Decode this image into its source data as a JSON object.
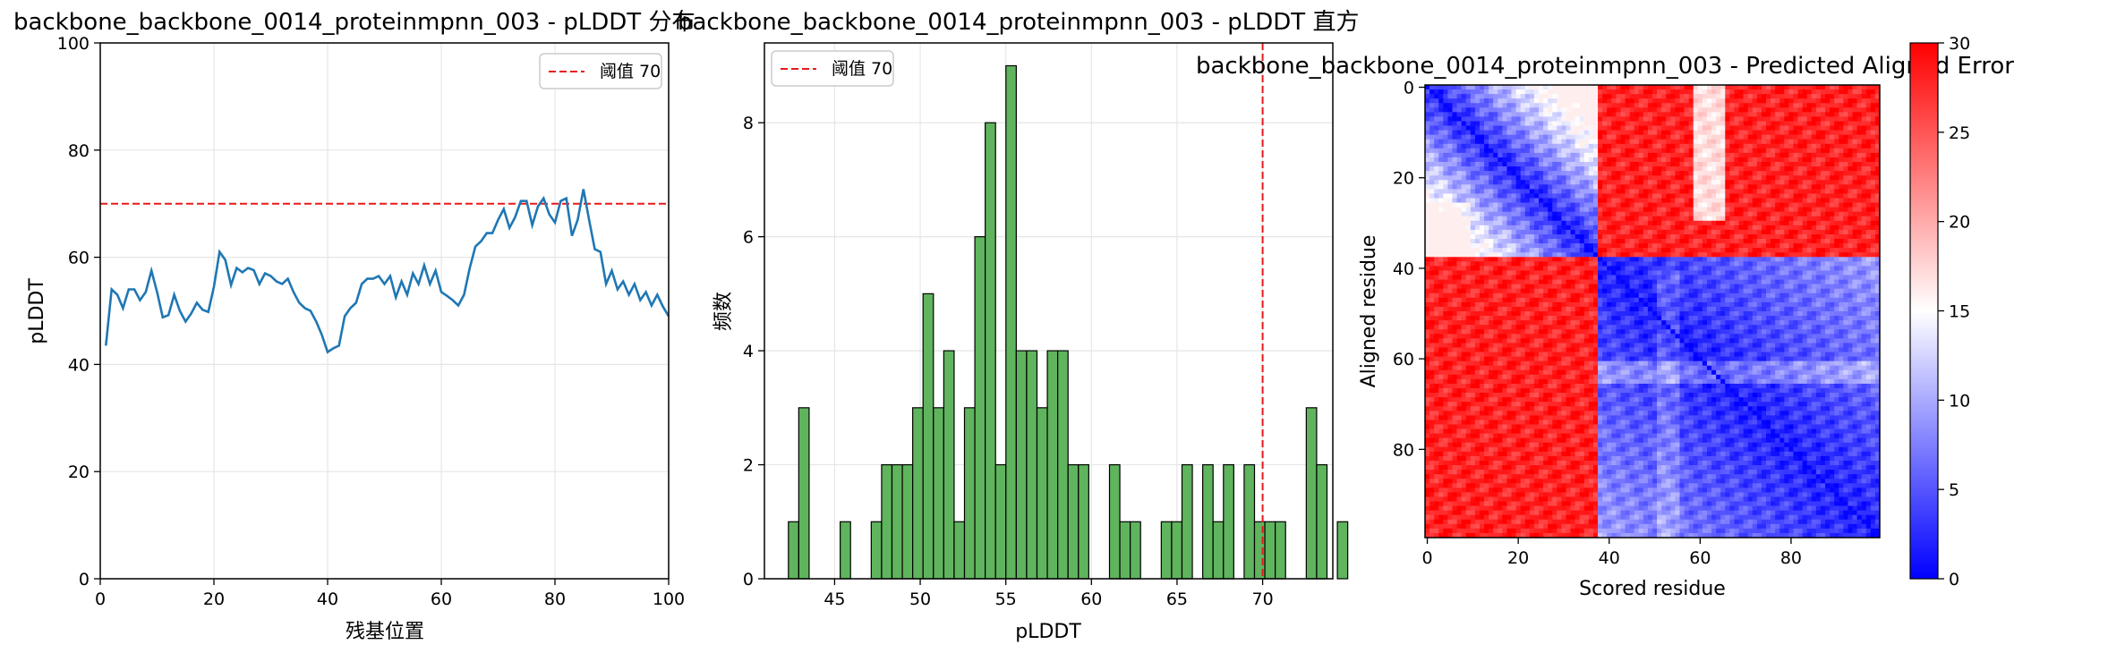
{
  "chart_data": [
    {
      "type": "line",
      "title": "backbone_backbone_0014_proteinmpnn_003 - pLDDT 分布",
      "xlabel": "残基位置",
      "ylabel": "pLDDT",
      "xlim": [
        0,
        100
      ],
      "ylim": [
        0,
        100
      ],
      "xticks": [
        "0",
        "20",
        "40",
        "60",
        "80",
        "100"
      ],
      "yticks": [
        "0",
        "20",
        "40",
        "60",
        "80",
        "100"
      ],
      "grid": true,
      "legend": {
        "position": "top-right",
        "entries": [
          "阈值 70"
        ]
      },
      "threshold": {
        "axis": "y",
        "value": 70,
        "color": "#e8191b",
        "style": "dashed"
      },
      "series": [
        {
          "color": "#1f77b4",
          "x": [
            1,
            2,
            3,
            4,
            5,
            6,
            7,
            8,
            9,
            10,
            11,
            12,
            13,
            14,
            15,
            16,
            17,
            18,
            19,
            20,
            21,
            22,
            23,
            24,
            25,
            26,
            27,
            28,
            29,
            30,
            31,
            32,
            33,
            34,
            35,
            36,
            37,
            38,
            39,
            40,
            41,
            42,
            43,
            44,
            45,
            46,
            47,
            48,
            49,
            50,
            51,
            52,
            53,
            54,
            55,
            56,
            57,
            58,
            59,
            60,
            61,
            62,
            63,
            64,
            65,
            66,
            67,
            68,
            69,
            70,
            71,
            72,
            73,
            74,
            75,
            76,
            77,
            78,
            79,
            80,
            81,
            82,
            83,
            84,
            85,
            86,
            87,
            88,
            89,
            90,
            91,
            92,
            93,
            94,
            95,
            96,
            97,
            98,
            99,
            100
          ],
          "values": [
            43.5,
            54,
            53,
            50.5,
            54,
            54,
            52,
            53.5,
            57.5,
            53.5,
            48.8,
            49.2,
            53,
            50,
            48,
            49.5,
            51.5,
            50.2,
            49.8,
            54.5,
            61,
            59.5,
            54.8,
            58,
            57.2,
            58,
            57.6,
            55,
            57,
            56.5,
            55.5,
            55,
            56,
            53.5,
            51.5,
            50.5,
            50,
            48,
            45.5,
            42.3,
            43,
            43.5,
            49,
            50.5,
            51.5,
            55,
            56,
            56,
            56.5,
            55,
            56.5,
            52.5,
            55.5,
            53,
            57,
            55,
            58.5,
            55,
            57.5,
            53.5,
            52.8,
            52,
            51,
            53,
            58,
            62,
            63,
            64.5,
            64.5,
            67,
            69,
            65.5,
            67.5,
            70.5,
            70.5,
            66,
            69.5,
            71,
            68,
            66.5,
            70.5,
            71,
            64,
            67,
            72.7,
            67,
            61.5,
            61,
            55,
            57.5,
            54,
            55.5,
            53,
            55,
            52,
            53.5,
            51,
            53,
            50.8,
            49
          ]
        }
      ]
    },
    {
      "type": "bar",
      "title": "backbone_backbone_0014_proteinmpnn_003 - pLDDT 直方",
      "xlabel": "pLDDT",
      "ylabel": "频数",
      "xlim": [
        40.9,
        74.1
      ],
      "ylim": [
        0,
        9.4
      ],
      "xticks": [
        "45",
        "50",
        "55",
        "60",
        "65",
        "70"
      ],
      "yticks": [
        "0",
        "2",
        "4",
        "6",
        "8"
      ],
      "grid": true,
      "legend": {
        "position": "top-left",
        "entries": [
          "阈值 70"
        ]
      },
      "threshold": {
        "axis": "x",
        "value": 70,
        "color": "#e8191b",
        "style": "dashed"
      },
      "bar_color": "#5fb45d",
      "bin_start": 42.3,
      "bin_width": 0.605,
      "counts": [
        1,
        3,
        0,
        0,
        0,
        1,
        0,
        0,
        1,
        2,
        2,
        2,
        3,
        5,
        3,
        4,
        1,
        3,
        6,
        8,
        2,
        9,
        4,
        4,
        3,
        4,
        4,
        2,
        2,
        0,
        0,
        2,
        1,
        1,
        0,
        0,
        1,
        1,
        2,
        0,
        2,
        1,
        2,
        0,
        2,
        1,
        1,
        1,
        0,
        0,
        3,
        2,
        0,
        1
      ]
    },
    {
      "type": "heatmap",
      "title": "backbone_backbone_0014_proteinmpnn_003 - Predicted Aligned Error",
      "xlabel": "Scored residue",
      "ylabel": "Aligned residue",
      "size": 100,
      "xticks": [
        "0",
        "20",
        "40",
        "60",
        "80"
      ],
      "yticks": [
        "0",
        "20",
        "40",
        "60",
        "80"
      ],
      "colormap": "bwr",
      "vmin": 0,
      "vmax": 30,
      "colorbar_ticks": [
        "0",
        "5",
        "10",
        "15",
        "20",
        "25",
        "30"
      ],
      "domains": [
        {
          "start": 0,
          "end": 37
        },
        {
          "start": 38,
          "end": 99
        }
      ],
      "notes_on_values": {
        "within_domain_1": "approx. 2-14 (blue to light)",
        "within_domain_2": "approx. 2-12 (blue)",
        "between_domains": "approx. 25-30 (red)",
        "stripe_near_residue_60_top_rows": "approx. 14-18 (light)"
      }
    }
  ]
}
